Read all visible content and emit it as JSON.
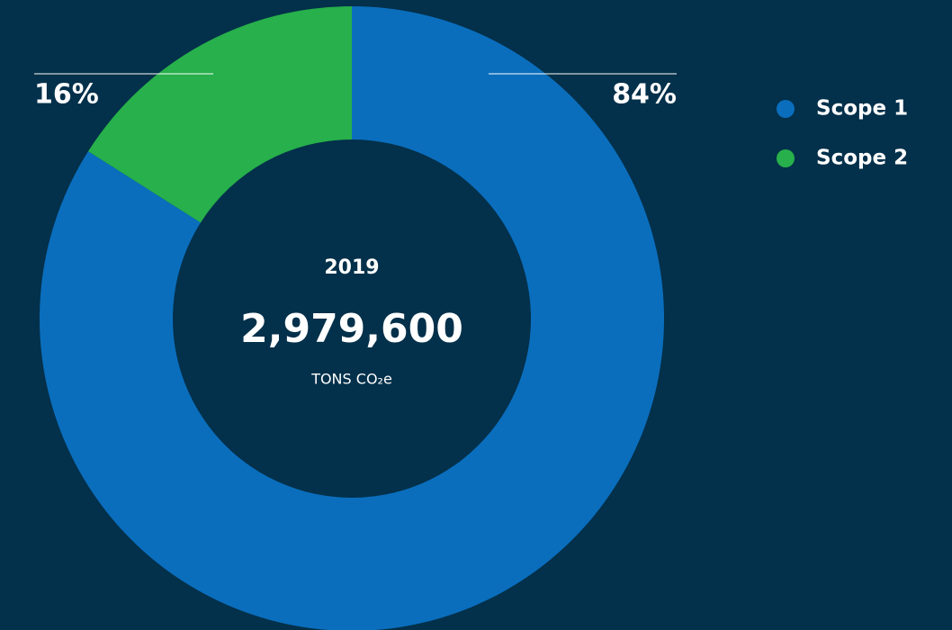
{
  "chart_data": {
    "type": "pie",
    "donut": true,
    "categories": [
      "Scope 1",
      "Scope 2"
    ],
    "values": [
      84,
      16
    ],
    "value_labels": [
      "84%",
      "16%"
    ],
    "colors": [
      "#0a6ebd",
      "#27b04b"
    ],
    "center_title": "2019",
    "center_value": "2,979,600",
    "center_unit": "TONS CO₂e",
    "legend": "top-right"
  }
}
